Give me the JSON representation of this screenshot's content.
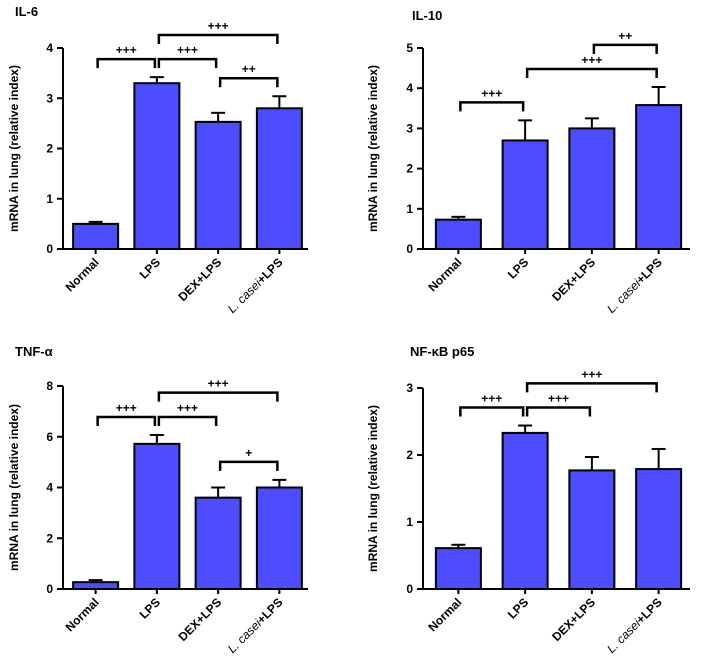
{
  "figure": {
    "colors": {
      "bar_fill": "#4d4dff",
      "stroke": "#000000",
      "background": "#ffffff"
    }
  },
  "chart_data": [
    {
      "type": "bar",
      "title": "IL-6",
      "ylabel": "mRNA in lung (relative index)",
      "xlabel": "",
      "ylim": [
        0,
        4
      ],
      "yticks": [
        "0",
        "1",
        "2",
        "3",
        "4"
      ],
      "categories": [
        {
          "label": "Normal",
          "italic_prefix": ""
        },
        {
          "label": "LPS",
          "italic_prefix": ""
        },
        {
          "label": "DEX+LPS",
          "italic_prefix": ""
        },
        {
          "label": "+LPS",
          "italic_prefix": "L. casei"
        }
      ],
      "values": [
        0.5,
        3.3,
        2.53,
        2.8
      ],
      "errors": [
        0.04,
        0.12,
        0.18,
        0.24
      ],
      "comparisons": [
        {
          "from": 0,
          "to": 1,
          "label": "+++"
        },
        {
          "from": 1,
          "to": 2,
          "label": "+++"
        },
        {
          "from": 1,
          "to": 3,
          "label": "+++"
        },
        {
          "from": 2,
          "to": 3,
          "label": "++"
        }
      ]
    },
    {
      "type": "bar",
      "title": "IL-10",
      "ylabel": "mRNA in lung (relative index)",
      "xlabel": "",
      "ylim": [
        0,
        5
      ],
      "yticks": [
        "0",
        "1",
        "2",
        "3",
        "4",
        "5"
      ],
      "categories": [
        {
          "label": "Normal",
          "italic_prefix": ""
        },
        {
          "label": "LPS",
          "italic_prefix": ""
        },
        {
          "label": "DEX+LPS",
          "italic_prefix": ""
        },
        {
          "label": "+LPS",
          "italic_prefix": "L. casei"
        }
      ],
      "values": [
        0.73,
        2.7,
        3.0,
        3.58
      ],
      "errors": [
        0.07,
        0.5,
        0.25,
        0.45
      ],
      "comparisons": [
        {
          "from": 0,
          "to": 1,
          "label": "+++"
        },
        {
          "from": 1,
          "to": 3,
          "label": "+++"
        },
        {
          "from": 2,
          "to": 3,
          "label": "++"
        }
      ]
    },
    {
      "type": "bar",
      "title": "TNF-α",
      "ylabel": "mRNA in lung (relative index)",
      "xlabel": "",
      "ylim": [
        0,
        8
      ],
      "yticks": [
        "0",
        "2",
        "4",
        "6",
        "8"
      ],
      "categories": [
        {
          "label": "Normal",
          "italic_prefix": ""
        },
        {
          "label": "LPS",
          "italic_prefix": ""
        },
        {
          "label": "DEX+LPS",
          "italic_prefix": ""
        },
        {
          "label": "+LPS",
          "italic_prefix": "L. casei"
        }
      ],
      "values": [
        0.27,
        5.72,
        3.6,
        4.0
      ],
      "errors": [
        0.08,
        0.35,
        0.4,
        0.3
      ],
      "comparisons": [
        {
          "from": 0,
          "to": 1,
          "label": "+++"
        },
        {
          "from": 1,
          "to": 2,
          "label": "+++"
        },
        {
          "from": 1,
          "to": 3,
          "label": "+++"
        },
        {
          "from": 2,
          "to": 3,
          "label": "+"
        }
      ]
    },
    {
      "type": "bar",
      "title": "NF-κB p65",
      "ylabel": "mRNA in lung (relative index)",
      "xlabel": "",
      "ylim": [
        0,
        3
      ],
      "yticks": [
        "0",
        "1",
        "2",
        "3"
      ],
      "categories": [
        {
          "label": "Normal",
          "italic_prefix": ""
        },
        {
          "label": "LPS",
          "italic_prefix": ""
        },
        {
          "label": "DEX+LPS",
          "italic_prefix": ""
        },
        {
          "label": "+LPS",
          "italic_prefix": "L. casei"
        }
      ],
      "values": [
        0.61,
        2.33,
        1.77,
        1.79
      ],
      "errors": [
        0.05,
        0.11,
        0.2,
        0.3
      ],
      "comparisons": [
        {
          "from": 0,
          "to": 1,
          "label": "+++"
        },
        {
          "from": 1,
          "to": 2,
          "label": "+++"
        },
        {
          "from": 1,
          "to": 3,
          "label": "+++"
        }
      ]
    }
  ]
}
